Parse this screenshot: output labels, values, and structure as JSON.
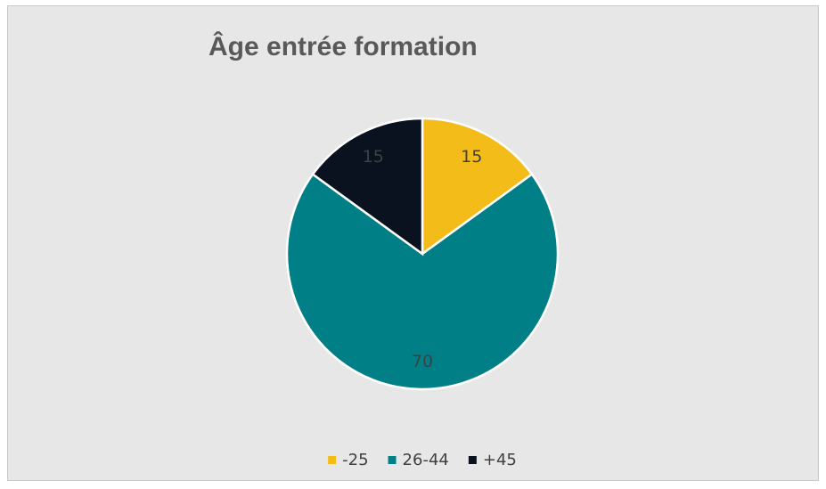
{
  "chart_data": {
    "type": "pie",
    "title": "Âge entrée formation",
    "categories": [
      "-25",
      "26-44",
      "+45"
    ],
    "values": [
      15,
      70,
      15
    ],
    "colors": [
      "#f4bc18",
      "#007f86",
      "#0a121f"
    ],
    "legend": "bottom"
  }
}
